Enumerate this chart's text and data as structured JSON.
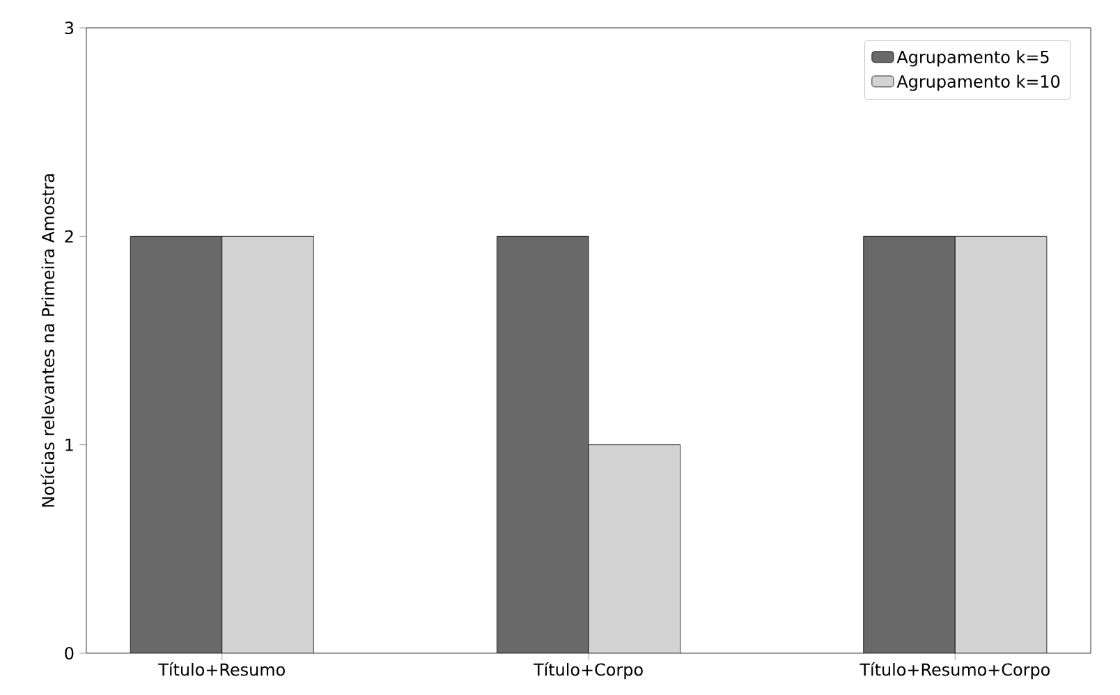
{
  "chart_data": {
    "type": "bar",
    "ylabel": "Notícias relevantes na Primeira Amostra",
    "categories": [
      "Título+Resumo",
      "Título+Corpo",
      "Título+Resumo+Corpo"
    ],
    "series": [
      {
        "name": "Agrupamento k=5",
        "color": "#696969",
        "values": [
          2,
          2,
          2
        ]
      },
      {
        "name": "Agrupamento k=10",
        "color": "#d3d3d3",
        "values": [
          2,
          1,
          2
        ]
      }
    ],
    "ylim": [
      0,
      3
    ],
    "yticks": [
      0,
      1,
      2,
      3
    ],
    "legend": "top right"
  }
}
